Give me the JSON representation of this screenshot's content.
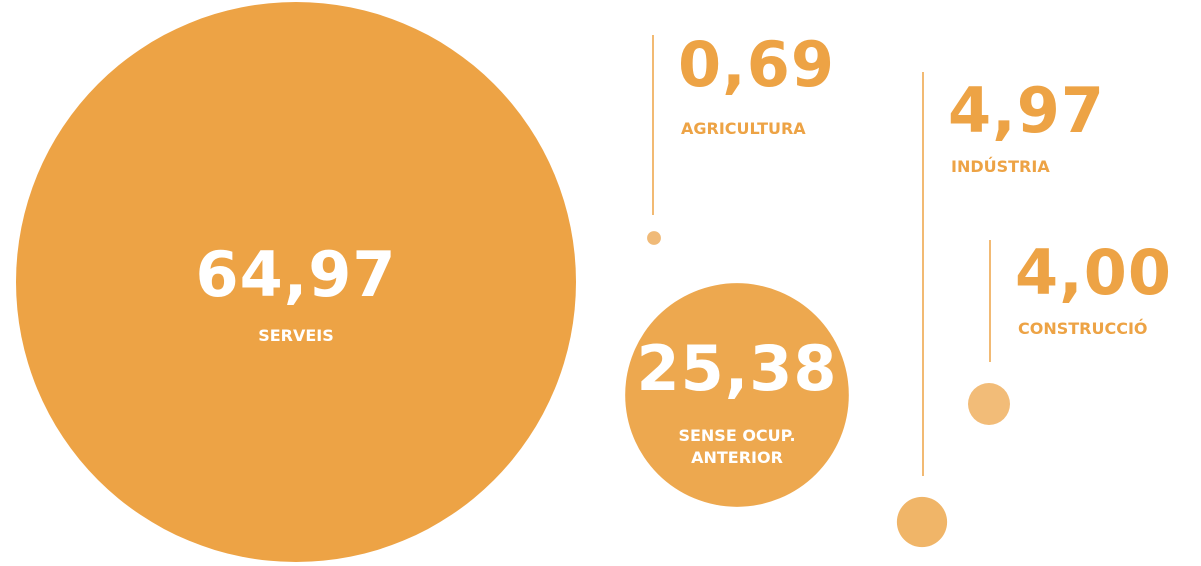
{
  "chart_data": {
    "type": "bubble",
    "categories": [
      "SERVEIS",
      "SENSE OCUP. ANTERIOR",
      "AGRICULTURA",
      "INDÚSTRIA",
      "CONSTRUCCIÓ"
    ],
    "values": [
      64.97,
      25.38,
      0.69,
      4.97,
      4.0
    ],
    "value_labels": [
      "64,97",
      "25,38",
      "0,69",
      "4,97",
      "4,00"
    ],
    "colors": [
      "#eda345",
      "#eda84f",
      "#f0ba78",
      "#f0b568",
      "#f2bc78"
    ]
  }
}
